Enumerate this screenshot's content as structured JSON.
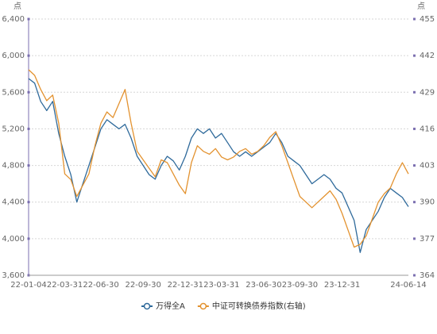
{
  "chart_data": {
    "type": "line",
    "ylabel": "点",
    "y2label": "点",
    "categories": [
      "22-01-04",
      null,
      null,
      null,
      null,
      null,
      "22-03-31",
      null,
      null,
      null,
      null,
      null,
      "22-06-30",
      null,
      null,
      null,
      null,
      null,
      null,
      "22-09-30",
      null,
      null,
      null,
      null,
      null,
      null,
      "22-12-31",
      null,
      null,
      null,
      null,
      null,
      "23-03-31",
      null,
      null,
      null,
      null,
      null,
      null,
      "23-06-30",
      null,
      null,
      null,
      null,
      null,
      "23-09-30",
      null,
      null,
      null,
      null,
      null,
      null,
      "23-12-31",
      null,
      null,
      null,
      null,
      null,
      null,
      null,
      null,
      null,
      null,
      "24-06-14"
    ],
    "series": [
      {
        "name": "万得全A",
        "color": "#2f6a9b",
        "values": [
          5750,
          5700,
          5500,
          5400,
          5500,
          5150,
          4900,
          4700,
          4400,
          4600,
          4800,
          5000,
          5200,
          5300,
          5250,
          5200,
          5250,
          5100,
          4900,
          4800,
          4700,
          4650,
          4800,
          4900,
          4850,
          4750,
          4900,
          5100,
          5200,
          5150,
          5200,
          5100,
          5150,
          5050,
          4950,
          4900,
          4950,
          4900,
          4950,
          5000,
          5050,
          5150,
          5050,
          4900,
          4850,
          4800,
          4700,
          4600,
          4650,
          4700,
          4650,
          4550,
          4500,
          4350,
          4200,
          3850,
          4100,
          4200,
          4300,
          4450,
          4550,
          4500,
          4450,
          4350
        ]
      },
      {
        "name": "中证可转换债券指数(右轴)",
        "color": "#e3922f",
        "axis": "y2",
        "values": [
          437,
          435,
          430,
          426,
          428,
          418,
          400,
          398,
          392,
          396,
          400,
          410,
          418,
          422,
          420,
          425,
          430,
          418,
          408,
          405,
          402,
          399,
          405,
          404,
          400,
          396,
          393,
          404,
          410,
          408,
          407,
          409,
          406,
          405,
          406,
          408,
          409,
          407,
          408,
          410,
          413,
          415,
          410,
          404,
          398,
          392,
          390,
          388,
          390,
          392,
          394,
          391,
          386,
          380,
          374,
          375,
          378,
          384,
          390,
          393,
          395,
          400,
          404,
          400
        ]
      }
    ],
    "ylim": [
      3600,
      6400
    ],
    "yticks": [
      {
        "value": 3600,
        "label": "3,600"
      },
      {
        "value": 4000,
        "label": "4,000"
      },
      {
        "value": 4400,
        "label": "4,400"
      },
      {
        "value": 4800,
        "label": "4,800"
      },
      {
        "value": 5200,
        "label": "5,200"
      },
      {
        "value": 5600,
        "label": "5,600"
      },
      {
        "value": 6000,
        "label": "6,000"
      },
      {
        "value": 6400,
        "label": "6,400"
      }
    ],
    "y2lim": [
      364,
      455
    ],
    "y2ticks": [
      364,
      377,
      390,
      403,
      416,
      429,
      442,
      455
    ],
    "grid": true,
    "legend": "bottom"
  }
}
